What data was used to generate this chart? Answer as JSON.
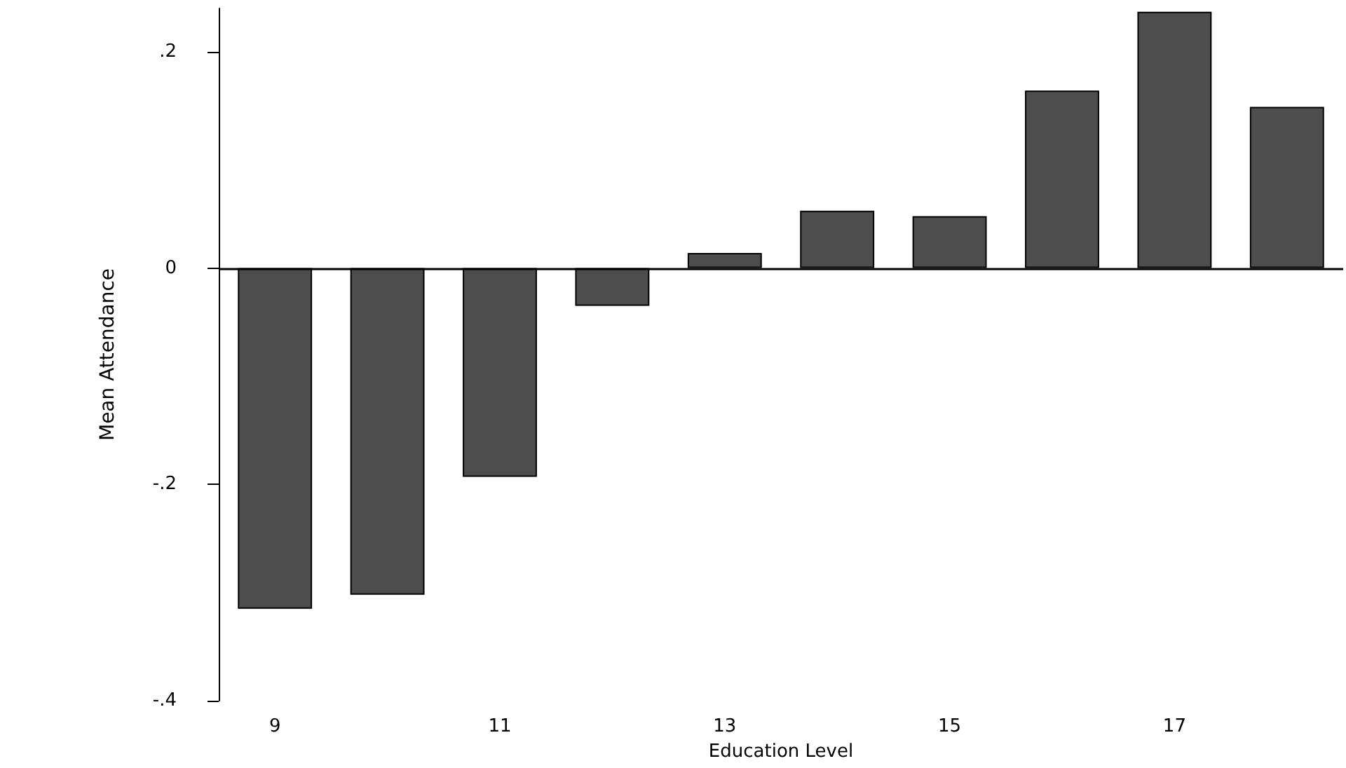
{
  "chart_data": {
    "type": "bar",
    "xlabel": "Education Level",
    "ylabel": "Mean Attendance",
    "categories": [
      "9",
      null,
      "11",
      null,
      "13",
      null,
      "15",
      null,
      "17",
      null
    ],
    "values": [
      -0.315,
      -0.302,
      -0.193,
      -0.035,
      0.014,
      0.053,
      0.048,
      0.164,
      0.237,
      0.149
    ],
    "color": "#4d4d4d",
    "ylim": [
      -0.4,
      0.24
    ],
    "yticks": [
      {
        "value": -0.4,
        "label": "-.4"
      },
      {
        "value": -0.2,
        "label": "-.2"
      },
      {
        "value": 0,
        "label": "0"
      },
      {
        "value": 0.2,
        "label": ".2"
      }
    ],
    "ref_lines": [
      {
        "axis": "y",
        "value": 0,
        "color": "#000000"
      }
    ],
    "grid": false
  }
}
